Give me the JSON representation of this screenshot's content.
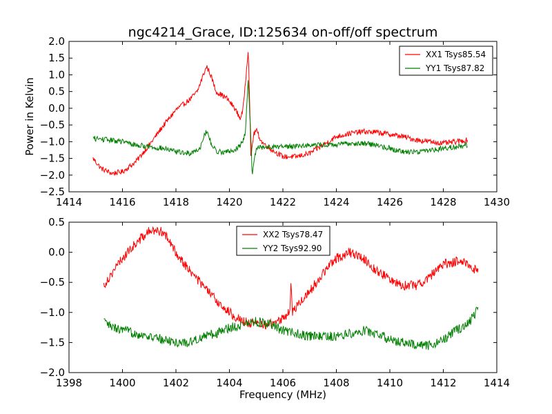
{
  "title": "ngc4214_Grace, ID:125634 on-off/off spectrum",
  "colors": {
    "xx": "#ff0000",
    "yy": "#007f00"
  },
  "chart_data": [
    {
      "type": "line",
      "ylabel": "Power in Kelvin",
      "xlabel": "",
      "xlim": [
        1414,
        1430
      ],
      "ylim": [
        -2.5,
        2.0
      ],
      "xticks": [
        "1414",
        "1416",
        "1418",
        "1420",
        "1422",
        "1424",
        "1426",
        "1428",
        "1430"
      ],
      "yticks": [
        "−2.5",
        "−2.0",
        "−1.5",
        "−1.0",
        "−0.5",
        "0.0",
        "0.5",
        "1.0",
        "1.5",
        "2.0"
      ],
      "grid": false,
      "legend_position": "top-right",
      "series": [
        {
          "name": "XX1 Tsys85.54",
          "color": "#ff0000",
          "x": [
            1414.9,
            1415.2,
            1415.6,
            1416.0,
            1416.5,
            1417.0,
            1417.5,
            1418.0,
            1418.5,
            1418.8,
            1419.0,
            1419.15,
            1419.3,
            1419.5,
            1419.9,
            1420.2,
            1420.4,
            1420.5,
            1420.6,
            1420.7,
            1420.75,
            1420.8,
            1420.9,
            1421.0,
            1421.2,
            1421.5,
            1422.0,
            1422.5,
            1423.0,
            1423.5,
            1424.0,
            1424.5,
            1425.0,
            1425.5,
            1426.0,
            1426.5,
            1427.0,
            1427.5,
            1428.0,
            1428.5,
            1428.9
          ],
          "y": [
            -1.5,
            -1.8,
            -1.95,
            -1.9,
            -1.6,
            -1.1,
            -0.55,
            -0.05,
            0.25,
            0.5,
            0.95,
            1.25,
            1.0,
            0.5,
            0.3,
            0.0,
            -0.3,
            -0.1,
            0.8,
            1.75,
            0.5,
            -1.5,
            -0.8,
            -0.65,
            -1.0,
            -1.2,
            -1.45,
            -1.45,
            -1.35,
            -1.1,
            -0.85,
            -0.75,
            -0.7,
            -0.72,
            -0.78,
            -0.85,
            -0.95,
            -1.0,
            -1.05,
            -1.0,
            -0.95
          ]
        },
        {
          "name": "YY1 Tsys87.82",
          "color": "#007f00",
          "x": [
            1414.9,
            1415.5,
            1416.0,
            1416.5,
            1417.0,
            1417.5,
            1418.0,
            1418.5,
            1418.9,
            1419.05,
            1419.15,
            1419.3,
            1419.5,
            1420.0,
            1420.3,
            1420.5,
            1420.6,
            1420.7,
            1420.8,
            1420.85,
            1421.0,
            1421.5,
            1422.0,
            1423.0,
            1424.0,
            1424.5,
            1425.0,
            1425.5,
            1426.0,
            1426.5,
            1427.0,
            1427.5,
            1428.0,
            1428.5,
            1428.9
          ],
          "y": [
            -0.9,
            -0.95,
            -1.0,
            -1.1,
            -1.15,
            -1.2,
            -1.3,
            -1.35,
            -1.2,
            -0.8,
            -0.7,
            -1.0,
            -1.3,
            -1.3,
            -1.2,
            -1.0,
            -0.7,
            0.85,
            -0.8,
            -2.0,
            -1.2,
            -1.15,
            -1.15,
            -1.1,
            -1.1,
            -1.05,
            -1.05,
            -1.1,
            -1.2,
            -1.3,
            -1.3,
            -1.25,
            -1.2,
            -1.15,
            -1.1
          ]
        }
      ]
    },
    {
      "type": "line",
      "ylabel": "",
      "xlabel": "Frequency (MHz)",
      "xlim": [
        1398,
        1414
      ],
      "ylim": [
        -2.0,
        0.5
      ],
      "xticks": [
        "1398",
        "1400",
        "1402",
        "1404",
        "1406",
        "1408",
        "1410",
        "1412",
        "1414"
      ],
      "yticks": [
        "−2.0",
        "−1.5",
        "−1.0",
        "−0.5",
        "0.0",
        "0.5"
      ],
      "grid": false,
      "legend_position": "top-center",
      "series": [
        {
          "name": "XX2 Tsys78.47",
          "color": "#ff0000",
          "x": [
            1399.3,
            1399.6,
            1400.0,
            1400.5,
            1401.0,
            1401.5,
            1402.0,
            1402.5,
            1403.0,
            1403.5,
            1404.0,
            1404.5,
            1405.0,
            1405.5,
            1406.0,
            1406.25,
            1406.3,
            1406.35,
            1406.5,
            1407.0,
            1407.5,
            1408.0,
            1408.5,
            1409.0,
            1409.5,
            1410.0,
            1410.5,
            1411.0,
            1411.5,
            1412.0,
            1412.5,
            1413.0,
            1413.3
          ],
          "y": [
            -0.55,
            -0.35,
            -0.1,
            0.15,
            0.35,
            0.35,
            0.0,
            -0.3,
            -0.55,
            -0.8,
            -1.0,
            -1.15,
            -1.2,
            -1.2,
            -1.1,
            -1.0,
            -0.5,
            -1.0,
            -0.9,
            -0.65,
            -0.35,
            -0.1,
            0.0,
            -0.1,
            -0.3,
            -0.45,
            -0.55,
            -0.55,
            -0.4,
            -0.2,
            -0.15,
            -0.2,
            -0.35
          ]
        },
        {
          "name": "YY2 Tsys92.90",
          "color": "#007f00",
          "x": [
            1399.3,
            1399.6,
            1400.0,
            1400.5,
            1401.0,
            1401.5,
            1402.0,
            1402.5,
            1403.0,
            1403.5,
            1404.0,
            1404.5,
            1405.0,
            1405.5,
            1406.0,
            1406.5,
            1407.0,
            1407.5,
            1408.0,
            1408.5,
            1409.0,
            1409.5,
            1410.0,
            1410.5,
            1411.0,
            1411.5,
            1412.0,
            1412.5,
            1413.0,
            1413.3
          ],
          "y": [
            -1.15,
            -1.25,
            -1.3,
            -1.35,
            -1.4,
            -1.45,
            -1.5,
            -1.5,
            -1.4,
            -1.35,
            -1.25,
            -1.2,
            -1.15,
            -1.2,
            -1.3,
            -1.35,
            -1.4,
            -1.4,
            -1.4,
            -1.35,
            -1.3,
            -1.35,
            -1.45,
            -1.5,
            -1.55,
            -1.55,
            -1.45,
            -1.3,
            -1.15,
            -0.95
          ]
        }
      ]
    }
  ]
}
